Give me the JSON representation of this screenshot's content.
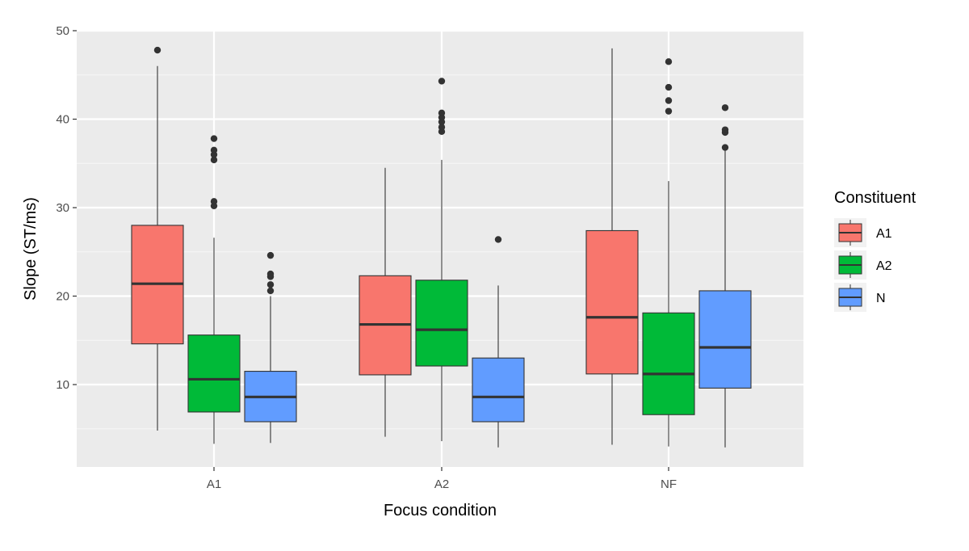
{
  "chart_data": {
    "type": "boxplot",
    "xlabel": "Focus condition",
    "ylabel": "Slope (ST/ms)",
    "categories": [
      "A1",
      "A2",
      "NF"
    ],
    "yticks": [
      10,
      20,
      30,
      40,
      50
    ],
    "ylim": [
      0.5,
      50
    ],
    "grid": true,
    "legend": {
      "title": "Constituent",
      "position": "right",
      "entries": [
        {
          "label": "A1",
          "color": "#F8766D"
        },
        {
          "label": "A2",
          "color": "#00BA38"
        },
        {
          "label": "N",
          "color": "#619CFF"
        }
      ]
    },
    "series": [
      {
        "name": "A1",
        "color": "#F8766D",
        "boxes": [
          {
            "category": "A1",
            "min": 4.8,
            "q1": 14.6,
            "median": 21.4,
            "q3": 28.0,
            "max": 46.0,
            "outliers": [
              47.8
            ]
          },
          {
            "category": "A2",
            "min": 4.1,
            "q1": 11.1,
            "median": 16.8,
            "q3": 22.3,
            "max": 34.5,
            "outliers": []
          },
          {
            "category": "NF",
            "min": 3.2,
            "q1": 11.2,
            "median": 17.6,
            "q3": 27.4,
            "max": 48.0,
            "outliers": []
          }
        ]
      },
      {
        "name": "A2",
        "color": "#00BA38",
        "boxes": [
          {
            "category": "A1",
            "min": 3.3,
            "q1": 6.9,
            "median": 10.6,
            "q3": 15.6,
            "max": 26.6,
            "outliers": [
              30.2,
              30.7,
              35.4,
              36.0,
              36.5,
              37.8
            ]
          },
          {
            "category": "A2",
            "min": 3.6,
            "q1": 12.1,
            "median": 16.2,
            "q3": 21.8,
            "max": 35.4,
            "outliers": [
              38.6,
              39.1,
              39.7,
              40.2,
              40.7,
              44.3
            ]
          },
          {
            "category": "NF",
            "min": 3.0,
            "q1": 6.6,
            "median": 11.2,
            "q3": 18.1,
            "max": 33.0,
            "outliers": [
              40.9,
              42.1,
              43.6,
              46.5
            ]
          }
        ]
      },
      {
        "name": "N",
        "color": "#619CFF",
        "boxes": [
          {
            "category": "A1",
            "min": 3.4,
            "q1": 5.8,
            "median": 8.6,
            "q3": 11.5,
            "max": 20.0,
            "outliers": [
              20.6,
              21.3,
              22.2,
              22.5,
              24.6
            ]
          },
          {
            "category": "A2",
            "min": 2.9,
            "q1": 5.8,
            "median": 8.6,
            "q3": 13.0,
            "max": 21.2,
            "outliers": [
              26.4
            ]
          },
          {
            "category": "NF",
            "min": 2.9,
            "q1": 9.6,
            "median": 14.2,
            "q3": 20.6,
            "max": 36.5,
            "outliers": [
              36.8,
              38.5,
              38.8,
              41.3
            ]
          }
        ]
      }
    ]
  }
}
